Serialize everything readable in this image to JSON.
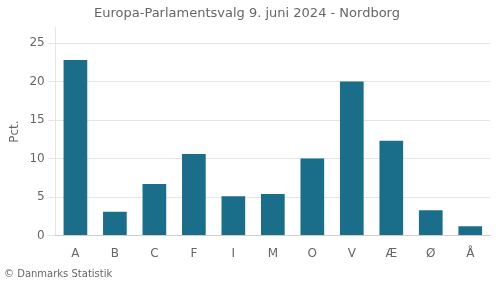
{
  "chart_data": {
    "type": "bar",
    "title": "Europa-Parlamentsvalg 9. juni 2024 - Nordborg",
    "categories": [
      "A",
      "B",
      "C",
      "F",
      "I",
      "M",
      "O",
      "V",
      "Æ",
      "Ø",
      "Å"
    ],
    "values": [
      22.8,
      3.1,
      6.7,
      10.6,
      5.1,
      5.4,
      10.0,
      20.0,
      12.3,
      3.3,
      1.2
    ],
    "color": "#1a6e8a",
    "ylabel": "Pct.",
    "ylim": [
      0,
      27
    ],
    "yticks": [
      0,
      5,
      10,
      15,
      20,
      25
    ],
    "grid": true,
    "footer": "© Danmarks Statistik"
  }
}
